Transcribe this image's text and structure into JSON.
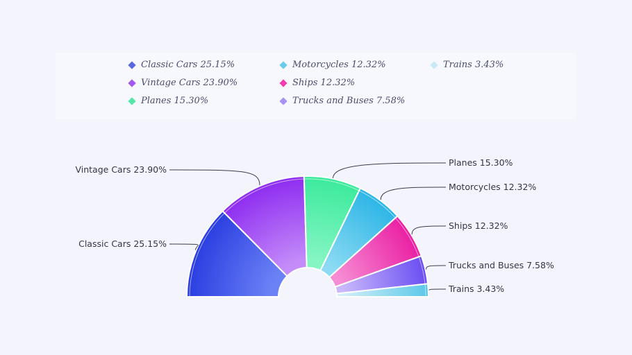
{
  "chart_data": {
    "type": "pie",
    "variant": "half-donut",
    "legend_placement": "top",
    "categories": [
      "Classic Cars",
      "Vintage Cars",
      "Planes",
      "Motorcycles",
      "Ships",
      "Trucks and Buses",
      "Trains"
    ],
    "values": [
      25.15,
      23.9,
      15.3,
      12.32,
      12.32,
      7.58,
      3.43
    ],
    "labels": [
      "Classic Cars 25.15%",
      "Vintage Cars 23.90%",
      "Planes 15.30%",
      "Motorcycles 12.32%",
      "Ships 12.32%",
      "Trucks and Buses 7.58%",
      "Trains 3.43%"
    ],
    "colors": [
      [
        "#2a3ee0",
        "#6b82f6"
      ],
      [
        "#8e2cf0",
        "#c48cf9"
      ],
      [
        "#3bea9c",
        "#86f5c4"
      ],
      [
        "#2cb5e6",
        "#8ddbf3"
      ],
      [
        "#ea1fa3",
        "#f68cd3"
      ],
      [
        "#6a4ef2",
        "#c9b8fb"
      ],
      [
        "#5ac8e8",
        "#d1eef8"
      ]
    ],
    "legend_colors": [
      "#5a68e0",
      "#a457ec",
      "#55e6a6",
      "#6dcbea",
      "#ef3fb2",
      "#a893f2",
      "#c7e9f6"
    ]
  }
}
